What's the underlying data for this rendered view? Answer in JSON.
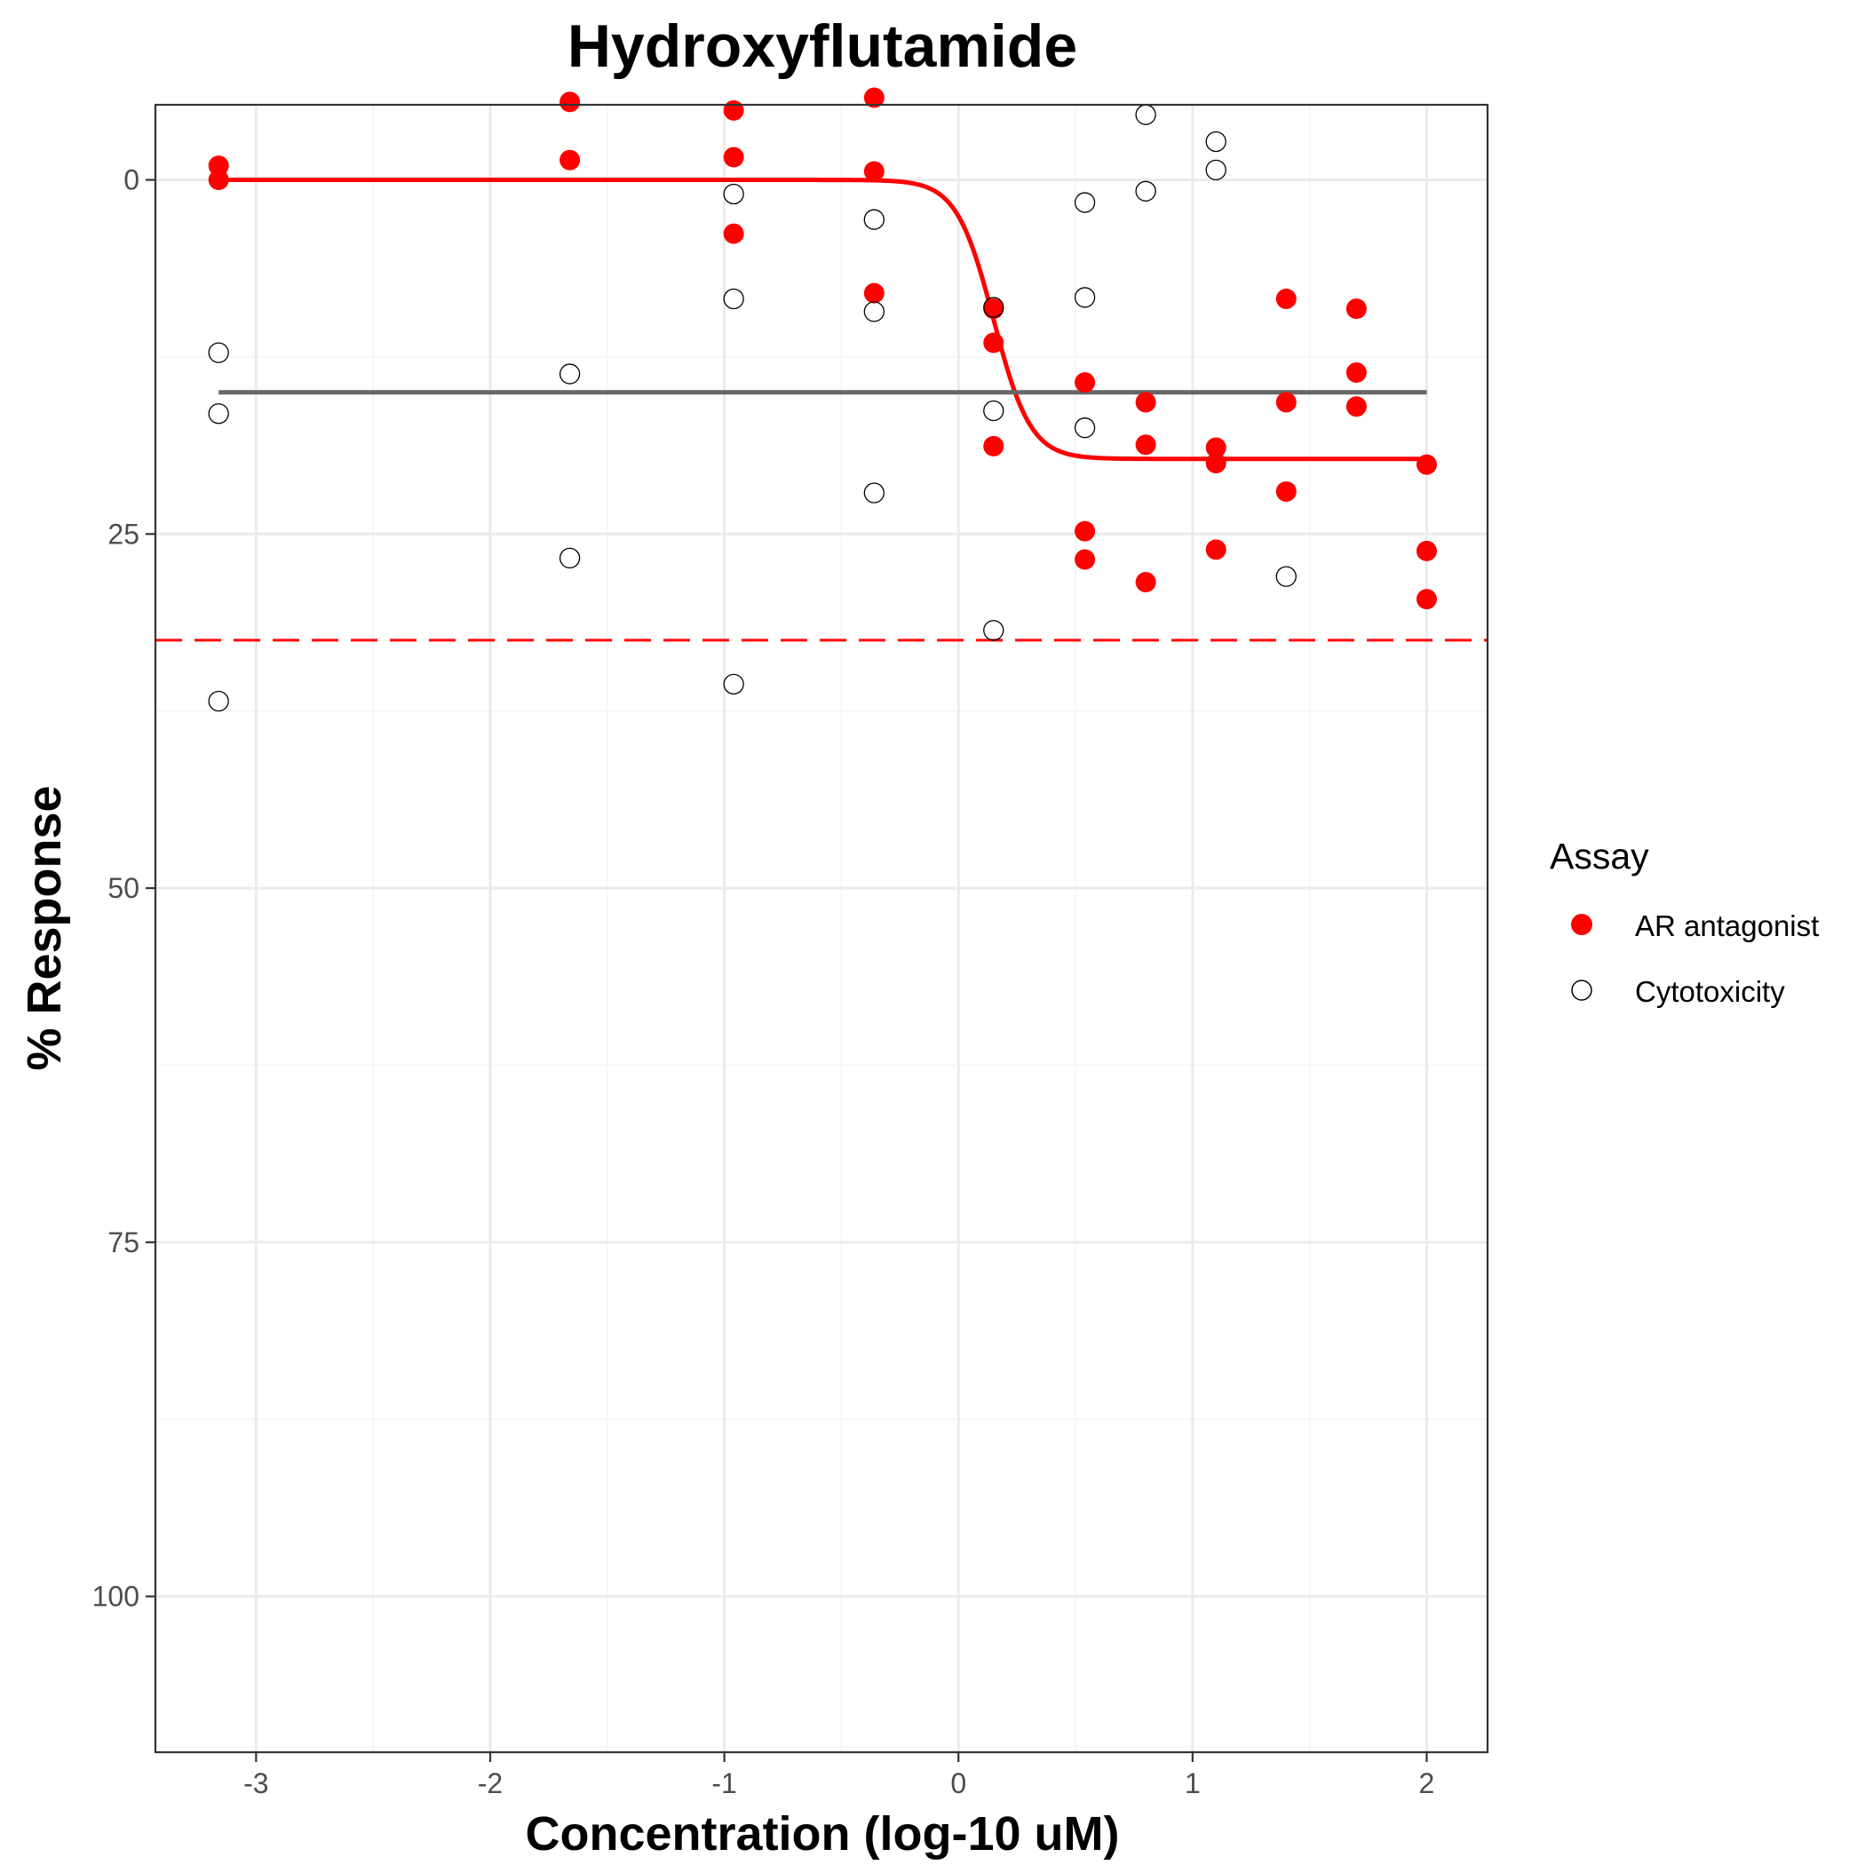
{
  "chart_data": {
    "type": "scatter",
    "title": "Hydroxyflutamide",
    "xlabel": "Concentration (log-10 uM)",
    "ylabel": "% Response",
    "xlim": [
      -3.43,
      2.26
    ],
    "ylim": [
      -5.3,
      111.0
    ],
    "y_reversed": true,
    "x_ticks": [
      -3,
      -2,
      -1,
      0,
      1,
      2
    ],
    "x_tick_labels": [
      "-3",
      "-2",
      "-1",
      "0",
      "1",
      "2"
    ],
    "y_ticks": [
      0,
      25,
      50,
      75,
      100
    ],
    "y_tick_labels": [
      "0",
      "25",
      "50",
      "75",
      "100"
    ],
    "grid": true,
    "legend": {
      "title": "Assay",
      "placement": "right",
      "entries": [
        "AR antagonist",
        "Cytotoxicity"
      ]
    },
    "colors": {
      "ar_antagonist": "#ff0000",
      "cytotoxicity_outline": "#000000",
      "cytotoxicity_line": "#666666",
      "grid_major": "#ebebeb",
      "grid_minor": "#f4f4f4"
    },
    "series": [
      {
        "name": "AR antagonist",
        "marker": "filled-circle",
        "points": [
          [
            -3.16,
            -1.0
          ],
          [
            -3.16,
            0.0
          ],
          [
            -1.66,
            -5.5
          ],
          [
            -1.66,
            -1.4
          ],
          [
            -0.96,
            -4.9
          ],
          [
            -0.96,
            -1.6
          ],
          [
            -0.96,
            3.8
          ],
          [
            -0.36,
            -5.8
          ],
          [
            -0.36,
            -0.6
          ],
          [
            -0.36,
            8.0
          ],
          [
            0.15,
            9.1
          ],
          [
            0.15,
            11.5
          ],
          [
            0.15,
            18.8
          ],
          [
            0.54,
            14.3
          ],
          [
            0.54,
            24.8
          ],
          [
            0.54,
            26.8
          ],
          [
            0.8,
            15.7
          ],
          [
            0.8,
            18.7
          ],
          [
            0.8,
            28.4
          ],
          [
            1.1,
            18.9
          ],
          [
            1.1,
            20.0
          ],
          [
            1.1,
            26.1
          ],
          [
            1.4,
            8.4
          ],
          [
            1.4,
            15.7
          ],
          [
            1.4,
            22.0
          ],
          [
            1.7,
            9.1
          ],
          [
            1.7,
            13.6
          ],
          [
            1.7,
            16.0
          ],
          [
            2.0,
            20.1
          ],
          [
            2.0,
            26.2
          ],
          [
            2.0,
            29.6
          ]
        ]
      },
      {
        "name": "Cytotoxicity",
        "marker": "open-circle",
        "points": [
          [
            -3.16,
            12.2
          ],
          [
            -3.16,
            16.5
          ],
          [
            -3.16,
            36.8
          ],
          [
            -1.66,
            13.7
          ],
          [
            -1.66,
            26.7
          ],
          [
            -0.96,
            1.0
          ],
          [
            -0.96,
            8.4
          ],
          [
            -0.96,
            35.6
          ],
          [
            -0.36,
            2.8
          ],
          [
            -0.36,
            9.3
          ],
          [
            -0.36,
            22.1
          ],
          [
            0.15,
            9.0
          ],
          [
            0.15,
            16.3
          ],
          [
            0.15,
            31.8
          ],
          [
            0.54,
            1.6
          ],
          [
            0.54,
            8.3
          ],
          [
            0.54,
            17.5
          ],
          [
            0.8,
            -4.6
          ],
          [
            0.8,
            0.8
          ],
          [
            1.1,
            -2.7
          ],
          [
            1.1,
            -0.7
          ],
          [
            1.4,
            28.0
          ]
        ]
      }
    ],
    "fits": [
      {
        "name": "AR antagonist",
        "type": "hill",
        "top": 0.0,
        "bottom": 19.7,
        "log_ac50": 0.15,
        "hill_slope": 5.5,
        "x_range": [
          -3.16,
          2.0
        ]
      },
      {
        "name": "Cytotoxicity",
        "type": "constant",
        "value": 15.0,
        "x_range": [
          -3.16,
          2.0
        ]
      }
    ],
    "cutoff_line": {
      "value": 32.5,
      "style": "dashed"
    }
  }
}
